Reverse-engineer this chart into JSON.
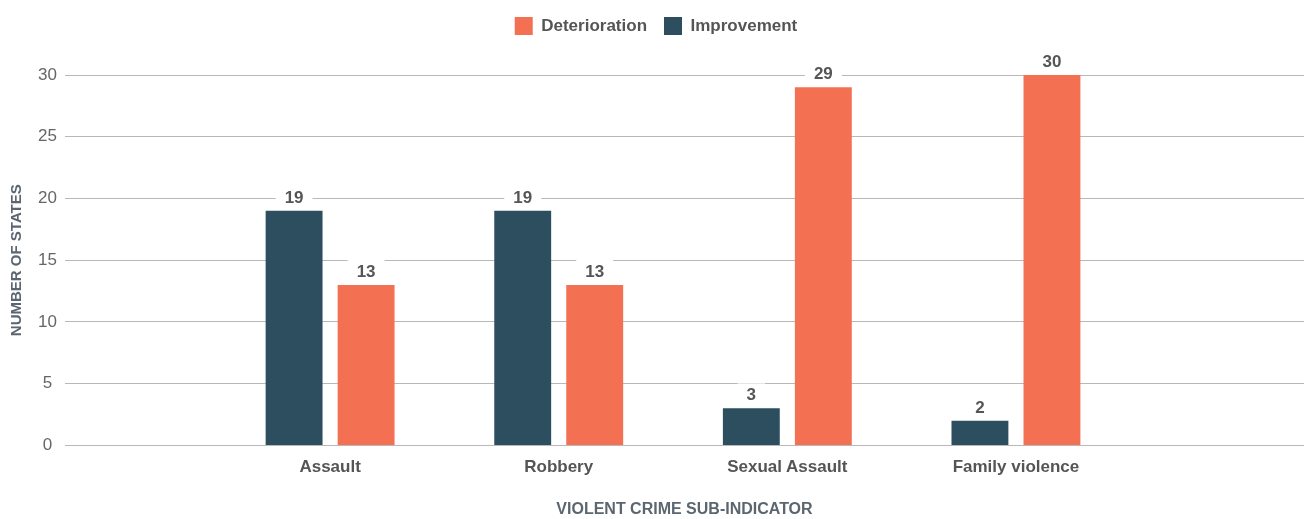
{
  "chart_data": {
    "type": "bar",
    "categories": [
      "Assault",
      "Robbery",
      "Sexual Assault",
      "Family violence"
    ],
    "series": [
      {
        "name": "Improvement",
        "color": "#2d4e5e",
        "values": [
          19,
          19,
          3,
          2
        ]
      },
      {
        "name": "Deterioration",
        "color": "#f37053",
        "values": [
          13,
          13,
          29,
          30
        ]
      }
    ],
    "xlabel": "VIOLENT CRIME SUB-INDICATOR",
    "ylabel": "NUMBER OF STATES",
    "ylim": [
      0,
      30
    ],
    "yticks": [
      0,
      5,
      10,
      15,
      20,
      25,
      30
    ],
    "grid": "y",
    "legend": "top",
    "data_labels": true
  }
}
